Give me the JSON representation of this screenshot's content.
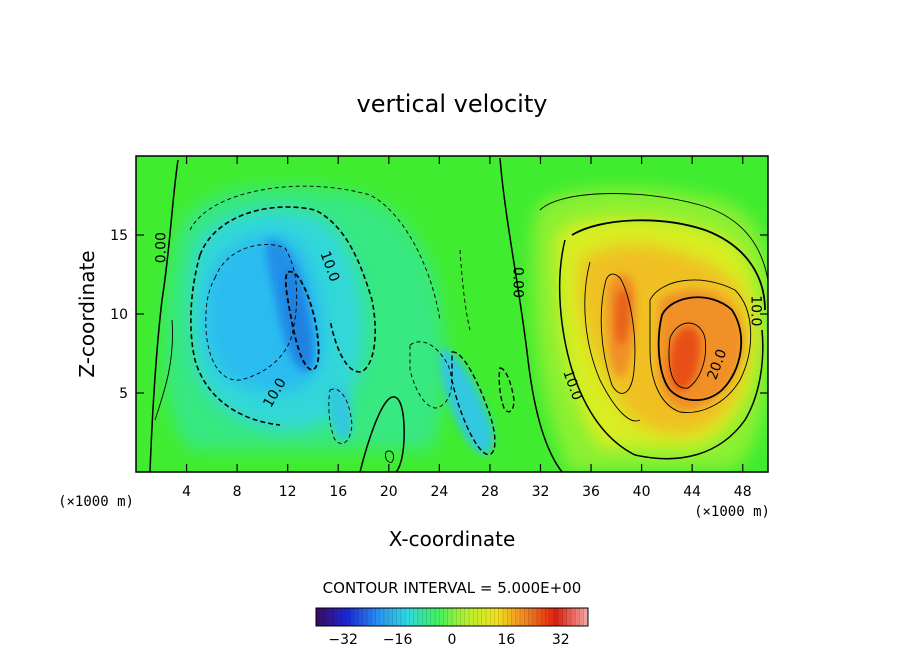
{
  "chart_data": {
    "type": "heatmap",
    "subtype": "filled-contour",
    "title": "vertical velocity",
    "xlabel": "X-coordinate",
    "ylabel": "Z-coordinate",
    "x_unit_note": "(×1000 m)",
    "y_unit_note": "(×1000 m)",
    "xlim": [
      0,
      50
    ],
    "ylim": [
      0,
      20
    ],
    "x_ticks": [
      4,
      8,
      12,
      16,
      20,
      24,
      28,
      32,
      36,
      40,
      44,
      48
    ],
    "y_ticks": [
      5,
      10,
      15
    ],
    "contour_interval_text": "CONTOUR INTERVAL = 5.000E+00",
    "contour_interval": 5,
    "colorscale": {
      "range": [
        -40,
        40
      ],
      "ticks": [
        -32,
        -16,
        0,
        16,
        32
      ],
      "colors": [
        "#3a0a6a",
        "#1a2ad8",
        "#2a8ef0",
        "#30d8e0",
        "#40f060",
        "#b8f030",
        "#f0e020",
        "#f08020",
        "#e02010",
        "#f0a0a0"
      ]
    },
    "background_value": 0,
    "features": [
      {
        "kind": "updraft-core",
        "x": 42.5,
        "z": 7,
        "peak": 30
      },
      {
        "kind": "updraft",
        "x": 38.5,
        "z": 10,
        "peak": 24
      },
      {
        "kind": "downdraft-core",
        "x": 13,
        "z": 10,
        "peak": -22
      },
      {
        "kind": "downdraft",
        "x": 8.5,
        "z": 8.5,
        "peak": -13
      },
      {
        "kind": "downdraft",
        "x": 27.5,
        "z": 4,
        "peak": -15
      }
    ],
    "contour_labels": [
      {
        "text": "0.00",
        "x": 2.0,
        "z": 14.2,
        "rotate": -90
      },
      {
        "text": "0.00",
        "x": 30.2,
        "z": 12.0,
        "rotate": 90
      },
      {
        "text": "10.0",
        "x": 15.3,
        "z": 13.0,
        "rotate": 70
      },
      {
        "text": "10.0",
        "x": 11.0,
        "z": 5.0,
        "rotate": -60
      },
      {
        "text": "10.0",
        "x": 34.5,
        "z": 5.5,
        "rotate": 70
      },
      {
        "text": "20.0",
        "x": 46.0,
        "z": 6.8,
        "rotate": -70
      },
      {
        "text": "10.0",
        "x": 49.0,
        "z": 10.2,
        "rotate": 90
      }
    ]
  }
}
